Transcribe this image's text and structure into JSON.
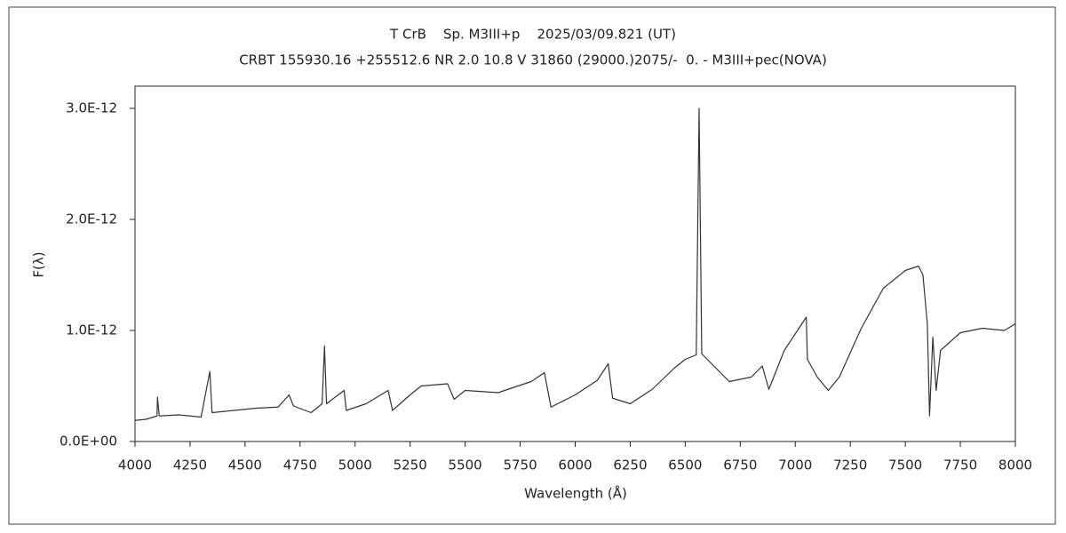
{
  "chart_data": {
    "type": "line",
    "title": "T CrB    Sp. M3III+p    2025/03/09.821 (UT)",
    "subtitle": "CRBT 155930.16 +255512.6 NR 2.0 10.8 V 31860 (29000.)2075/-  0. - M3III+pec(NOVA)",
    "x_label": "Wavelength (Å)",
    "y_label": "F(λ)",
    "color": "#333333",
    "x": [
      4000,
      4050,
      4100,
      4102,
      4110,
      4200,
      4300,
      4340,
      4350,
      4450,
      4550,
      4650,
      4700,
      4720,
      4800,
      4850,
      4861,
      4870,
      4950,
      4960,
      5050,
      5150,
      5170,
      5250,
      5300,
      5420,
      5450,
      5500,
      5650,
      5800,
      5860,
      5890,
      6000,
      6100,
      6150,
      6170,
      6250,
      6350,
      6450,
      6500,
      6550,
      6563,
      6575,
      6620,
      6700,
      6800,
      6850,
      6880,
      6950,
      7030,
      7050,
      7055,
      7100,
      7150,
      7200,
      7300,
      7400,
      7500,
      7560,
      7580,
      7600,
      7610,
      7625,
      7640,
      7660,
      7750,
      7850,
      7950,
      8000
    ],
    "values": [
      1.9e-13,
      2e-13,
      2.3e-13,
      4e-13,
      2.3e-13,
      2.4e-13,
      2.2e-13,
      6.3e-13,
      2.6e-13,
      2.8e-13,
      3e-13,
      3.1e-13,
      4.2e-13,
      3.2e-13,
      2.6e-13,
      3.4e-13,
      8.6e-13,
      3.4e-13,
      4.6e-13,
      2.8e-13,
      3.4e-13,
      4.6e-13,
      2.8e-13,
      4.2e-13,
      5e-13,
      5.2e-13,
      3.8e-13,
      4.6e-13,
      4.4e-13,
      5.4e-13,
      6.2e-13,
      3.1e-13,
      4.2e-13,
      5.5e-13,
      7e-13,
      3.9e-13,
      3.4e-13,
      4.7e-13,
      6.6e-13,
      7.4e-13,
      7.8e-13,
      3e-12,
      7.9e-13,
      7e-13,
      5.4e-13,
      5.8e-13,
      6.8e-13,
      4.7e-13,
      8.2e-13,
      1.06e-12,
      1.12e-12,
      7.4e-13,
      5.8e-13,
      4.6e-13,
      5.8e-13,
      1.02e-12,
      1.38e-12,
      1.54e-12,
      1.58e-12,
      1.5e-12,
      1.06e-12,
      2.3e-13,
      9.4e-13,
      4.6e-13,
      8.2e-13,
      9.8e-13,
      1.02e-12,
      1e-12,
      1.06e-12
    ],
    "xlim": [
      4000,
      8000
    ],
    "xticks": [
      4000,
      4250,
      4500,
      4750,
      5000,
      5250,
      5500,
      5750,
      6000,
      6250,
      6500,
      6750,
      7000,
      7250,
      7500,
      7750,
      8000
    ],
    "ylim": [
      0,
      3.2e-12
    ],
    "yticks": [
      {
        "value": 0,
        "label": "0.0E+00"
      },
      {
        "value": 1e-12,
        "label": "1.0E-12"
      },
      {
        "value": 2e-12,
        "label": "2.0E-12"
      },
      {
        "value": 3e-12,
        "label": "3.0E-12"
      }
    ]
  }
}
